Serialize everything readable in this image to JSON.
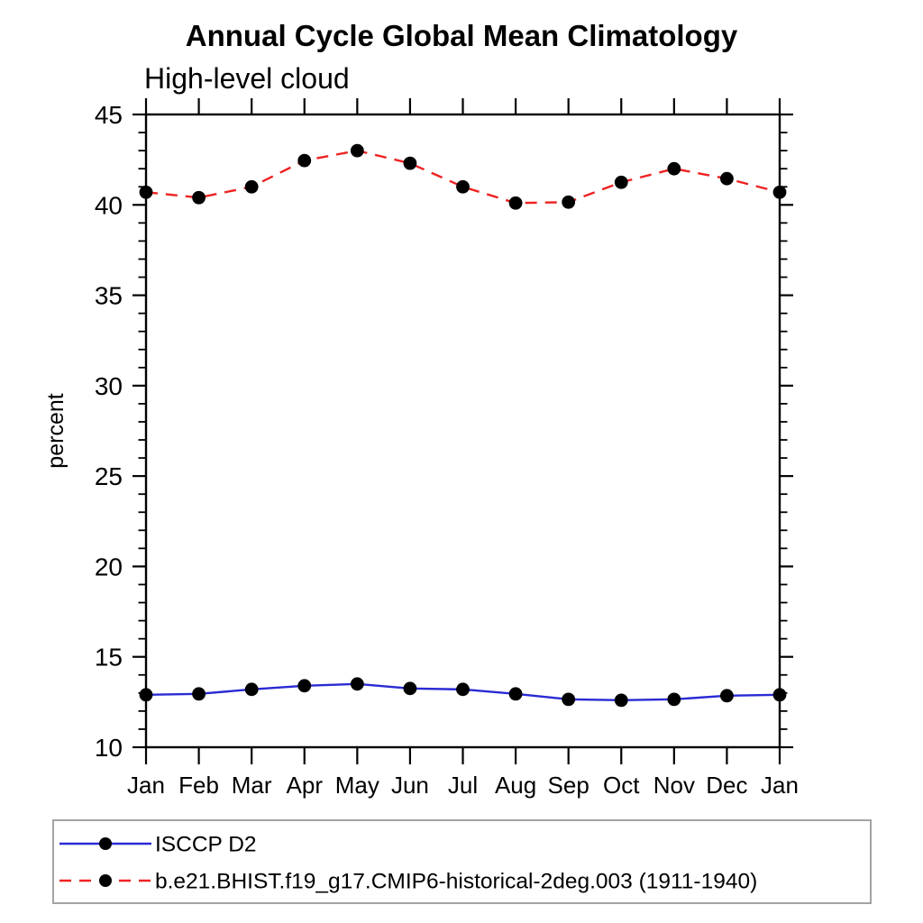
{
  "page": {
    "background": "#ffffff"
  },
  "chart_data": {
    "type": "line",
    "title": "Annual Cycle Global Mean Climatology",
    "subtitle": "High-level cloud",
    "xlabel": "",
    "ylabel": "percent",
    "categories": [
      "Jan",
      "Feb",
      "Mar",
      "Apr",
      "May",
      "Jun",
      "Jul",
      "Aug",
      "Sep",
      "Oct",
      "Nov",
      "Dec",
      "Jan"
    ],
    "ylim": [
      10,
      45
    ],
    "ytick_major": [
      10,
      15,
      20,
      25,
      30,
      35,
      40,
      45
    ],
    "ytick_minor_step": 1,
    "grid": false,
    "legend_position": "bottom-left-box",
    "axis_color": "#000000",
    "marker_color": "#000000",
    "series": [
      {
        "name": "ISCCP D2",
        "color": "#2a2ad4",
        "dash": "solid",
        "marker": "circle",
        "values": [
          12.9,
          12.95,
          13.2,
          13.4,
          13.5,
          13.25,
          13.2,
          12.95,
          12.65,
          12.6,
          12.65,
          12.85,
          12.9
        ]
      },
      {
        "name": "b.e21.BHIST.f19_g17.CMIP6-historical-2deg.003 (1911-1940)",
        "color": "#ee2222",
        "dash": "dashed",
        "marker": "circle",
        "values": [
          40.7,
          40.4,
          41.0,
          42.45,
          43.0,
          42.3,
          41.0,
          40.1,
          40.15,
          41.25,
          42.0,
          41.45,
          40.7
        ]
      }
    ]
  }
}
